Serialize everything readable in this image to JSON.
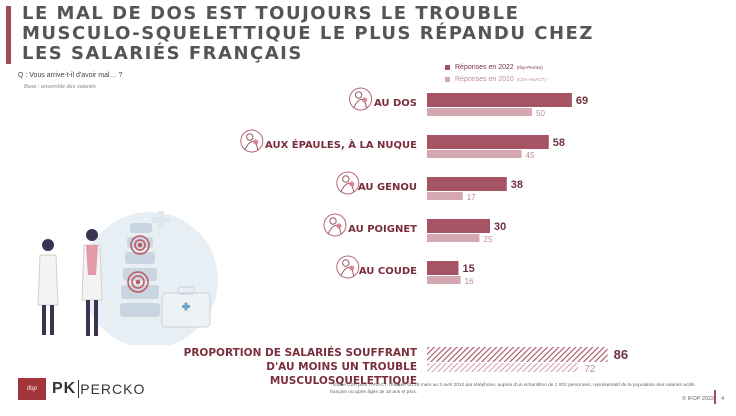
{
  "title": "LE MAL DE DOS EST TOUJOURS LE TROUBLE MUSCULO-SQUELETTIQUE LE PLUS RÉPANDU CHEZ LES SALARIÉS FRANÇAIS",
  "question": "Q : Vous arrive-t-il d'avoir mal… ?",
  "base": "Base : ensemble des salariés",
  "colors": {
    "accent": "#9e4b5b",
    "series_2022": "#a65364",
    "series_2010": "#d5a7b0",
    "label": "#7a2e3c"
  },
  "legend": [
    {
      "label": "Réponses en 2022",
      "note": "(Ifop-Percko)"
    },
    {
      "label": "Réponses en 2010",
      "note": "(CSA-ANACT) *"
    }
  ],
  "chart_data": {
    "type": "bar",
    "orientation": "horizontal",
    "categories": [
      "AU DOS",
      "AUX ÉPAULES, À LA NUQUE",
      "AU GENOU",
      "AU POIGNET",
      "AU COUDE"
    ],
    "category_icons": [
      "back-pain-icon",
      "shoulder-pain-icon",
      "knee-pain-icon",
      "wrist-pain-icon",
      "elbow-pain-icon"
    ],
    "series": [
      {
        "name": "Réponses en 2022",
        "values": [
          69,
          58,
          38,
          30,
          15
        ]
      },
      {
        "name": "Réponses en 2010",
        "values": [
          50,
          45,
          17,
          25,
          16
        ]
      }
    ],
    "xlim": [
      0,
      100
    ],
    "grid": false,
    "legend_position": "top-right",
    "summary": {
      "label_lines": [
        "PROPORTION DE SALARIÉS SOUFFRANT",
        "D'AU MOINS UN TROUBLE MUSCULOSQUELETTIQUE"
      ],
      "values": [
        86,
        72
      ],
      "pattern": "hatched"
    }
  },
  "footnote": "* Etude CSA pour l'ANACT, réalisée du 29 mars au 3 avril 2010 par téléphone, auprès d'un échantillon de 1 002 personnes, représentatif de la population des salariés actifs français occupés âgés de 18 ans et plus.",
  "logos": {
    "ifop": "ifop",
    "percko_mark": "PK",
    "percko_text": "PERCKO"
  },
  "copyright": "© IFOP 2022",
  "page_number": "4"
}
